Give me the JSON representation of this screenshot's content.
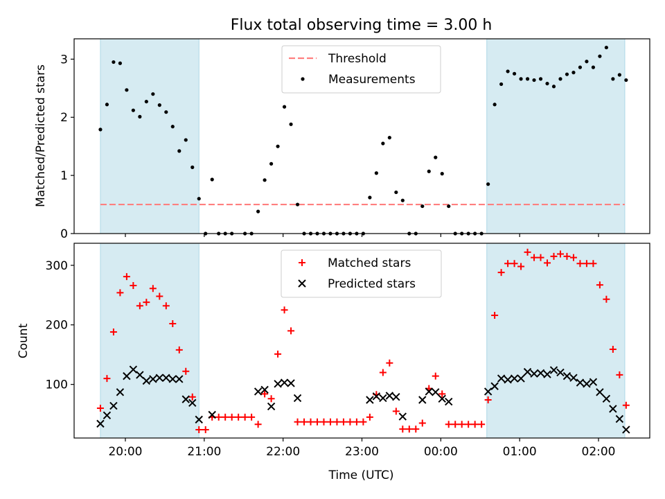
{
  "figure": {
    "title": "Flux total observing time = 3.00 h"
  },
  "chart_data": [
    {
      "type": "scatter",
      "panel": "top",
      "ylabel": "Matched/Predicted stars",
      "xlabel": "",
      "ylim": [
        0,
        3.35
      ],
      "yticks": [
        0,
        1,
        2,
        3
      ],
      "xlim_hours": [
        19.35,
        26.65
      ],
      "grid": false,
      "legend_placement": "top-center",
      "threshold": {
        "name": "Threshold",
        "value": 0.5,
        "color": "#ff7f7f"
      },
      "shaded_regions": [
        {
          "from": "19:41",
          "to": "20:56",
          "color": "#add8e6"
        },
        {
          "from": "00:35",
          "to": "02:20",
          "color": "#add8e6"
        }
      ],
      "series": [
        {
          "name": "Measurements",
          "color": "#000000",
          "points": [
            [
              "19:41",
              1.79
            ],
            [
              "19:46",
              2.22
            ],
            [
              "19:51",
              2.95
            ],
            [
              "19:56",
              2.93
            ],
            [
              "20:01",
              2.47
            ],
            [
              "20:06",
              2.12
            ],
            [
              "20:11",
              2.01
            ],
            [
              "20:16",
              2.27
            ],
            [
              "20:21",
              2.4
            ],
            [
              "20:26",
              2.21
            ],
            [
              "20:31",
              2.09
            ],
            [
              "20:36",
              1.84
            ],
            [
              "20:41",
              1.42
            ],
            [
              "20:46",
              1.61
            ],
            [
              "20:51",
              1.14
            ],
            [
              "20:56",
              0.6
            ],
            [
              "21:01",
              0.0
            ],
            [
              "21:06",
              0.93
            ],
            [
              "21:11",
              0.0
            ],
            [
              "21:16",
              0.0
            ],
            [
              "21:21",
              0.0
            ],
            [
              "21:31",
              0.0
            ],
            [
              "21:36",
              0.0
            ],
            [
              "21:41",
              0.38
            ],
            [
              "21:46",
              0.92
            ],
            [
              "21:51",
              1.2
            ],
            [
              "21:56",
              1.5
            ],
            [
              "22:01",
              2.18
            ],
            [
              "22:06",
              1.88
            ],
            [
              "22:11",
              0.5
            ],
            [
              "22:16",
              0.0
            ],
            [
              "22:21",
              0.0
            ],
            [
              "22:26",
              0.0
            ],
            [
              "22:31",
              0.0
            ],
            [
              "22:36",
              0.0
            ],
            [
              "22:41",
              0.0
            ],
            [
              "22:46",
              0.0
            ],
            [
              "22:51",
              0.0
            ],
            [
              "22:56",
              0.0
            ],
            [
              "23:01",
              0.0
            ],
            [
              "23:06",
              0.62
            ],
            [
              "23:11",
              1.04
            ],
            [
              "23:16",
              1.55
            ],
            [
              "23:21",
              1.65
            ],
            [
              "23:26",
              0.71
            ],
            [
              "23:31",
              0.57
            ],
            [
              "23:36",
              0.0
            ],
            [
              "23:41",
              0.0
            ],
            [
              "23:46",
              0.47
            ],
            [
              "23:51",
              1.07
            ],
            [
              "23:56",
              1.31
            ],
            [
              "00:01",
              1.03
            ],
            [
              "00:06",
              0.47
            ],
            [
              "00:11",
              0.0
            ],
            [
              "00:16",
              0.0
            ],
            [
              "00:21",
              0.0
            ],
            [
              "00:26",
              0.0
            ],
            [
              "00:31",
              0.0
            ],
            [
              "00:36",
              0.85
            ],
            [
              "00:41",
              2.22
            ],
            [
              "00:46",
              2.57
            ],
            [
              "00:51",
              2.79
            ],
            [
              "00:56",
              2.75
            ],
            [
              "01:01",
              2.66
            ],
            [
              "01:06",
              2.66
            ],
            [
              "01:11",
              2.64
            ],
            [
              "01:16",
              2.66
            ],
            [
              "01:21",
              2.58
            ],
            [
              "01:26",
              2.53
            ],
            [
              "01:31",
              2.66
            ],
            [
              "01:36",
              2.74
            ],
            [
              "01:41",
              2.77
            ],
            [
              "01:46",
              2.86
            ],
            [
              "01:51",
              2.96
            ],
            [
              "01:56",
              2.86
            ],
            [
              "02:01",
              3.05
            ],
            [
              "02:06",
              3.2
            ],
            [
              "02:11",
              2.66
            ],
            [
              "02:16",
              2.73
            ],
            [
              "02:21",
              2.64
            ]
          ]
        }
      ]
    },
    {
      "type": "scatter",
      "panel": "bottom",
      "xlabel": "Time (UTC)",
      "ylabel": "Count",
      "ylim": [
        10,
        337
      ],
      "yticks": [
        100,
        200,
        300
      ],
      "xlim_hours": [
        19.35,
        26.65
      ],
      "xticks": [
        "20:00",
        "21:00",
        "22:00",
        "23:00",
        "00:00",
        "01:00",
        "02:00"
      ],
      "grid": false,
      "legend_placement": "top-center",
      "shaded_regions": [
        {
          "from": "19:41",
          "to": "20:56",
          "color": "#add8e6"
        },
        {
          "from": "00:35",
          "to": "02:20",
          "color": "#add8e6"
        }
      ],
      "series": [
        {
          "name": "Matched stars",
          "marker": "plus",
          "color": "#ff0000",
          "points": [
            [
              "19:41",
              60
            ],
            [
              "19:46",
              110
            ],
            [
              "19:51",
              188
            ],
            [
              "19:56",
              254
            ],
            [
              "20:01",
              281
            ],
            [
              "20:06",
              266
            ],
            [
              "20:11",
              232
            ],
            [
              "20:16",
              238
            ],
            [
              "20:21",
              261
            ],
            [
              "20:26",
              248
            ],
            [
              "20:31",
              232
            ],
            [
              "20:36",
              202
            ],
            [
              "20:41",
              158
            ],
            [
              "20:46",
              122
            ],
            [
              "20:51",
              79
            ],
            [
              "20:56",
              24
            ],
            [
              "21:01",
              24
            ],
            [
              "21:06",
              45
            ],
            [
              "21:11",
              45
            ],
            [
              "21:16",
              45
            ],
            [
              "21:21",
              45
            ],
            [
              "21:26",
              45
            ],
            [
              "21:31",
              45
            ],
            [
              "21:36",
              45
            ],
            [
              "21:41",
              33
            ],
            [
              "21:46",
              84
            ],
            [
              "21:51",
              76
            ],
            [
              "21:56",
              151
            ],
            [
              "22:01",
              225
            ],
            [
              "22:06",
              190
            ],
            [
              "22:11",
              37
            ],
            [
              "22:16",
              37
            ],
            [
              "22:21",
              37
            ],
            [
              "22:26",
              37
            ],
            [
              "22:31",
              37
            ],
            [
              "22:36",
              37
            ],
            [
              "22:41",
              37
            ],
            [
              "22:46",
              37
            ],
            [
              "22:51",
              37
            ],
            [
              "22:56",
              37
            ],
            [
              "23:01",
              37
            ],
            [
              "23:06",
              45
            ],
            [
              "23:11",
              83
            ],
            [
              "23:16",
              120
            ],
            [
              "23:21",
              136
            ],
            [
              "23:26",
              55
            ],
            [
              "23:31",
              25
            ],
            [
              "23:36",
              25
            ],
            [
              "23:41",
              25
            ],
            [
              "23:46",
              35
            ],
            [
              "23:51",
              93
            ],
            [
              "23:56",
              114
            ],
            [
              "00:01",
              84
            ],
            [
              "00:06",
              33
            ],
            [
              "00:11",
              33
            ],
            [
              "00:16",
              33
            ],
            [
              "00:21",
              33
            ],
            [
              "00:26",
              33
            ],
            [
              "00:31",
              33
            ],
            [
              "00:36",
              74
            ],
            [
              "00:41",
              216
            ],
            [
              "00:46",
              288
            ],
            [
              "00:51",
              303
            ],
            [
              "00:56",
              303
            ],
            [
              "01:01",
              298
            ],
            [
              "01:06",
              322
            ],
            [
              "01:11",
              313
            ],
            [
              "01:16",
              313
            ],
            [
              "01:21",
              304
            ],
            [
              "01:26",
              315
            ],
            [
              "01:31",
              319
            ],
            [
              "01:36",
              315
            ],
            [
              "01:41",
              313
            ],
            [
              "01:46",
              303
            ],
            [
              "01:51",
              303
            ],
            [
              "01:56",
              303
            ],
            [
              "02:01",
              267
            ],
            [
              "02:06",
              243
            ],
            [
              "02:11",
              159
            ],
            [
              "02:16",
              116
            ],
            [
              "02:21",
              65
            ]
          ]
        },
        {
          "name": "Predicted stars",
          "marker": "x",
          "color": "#000000",
          "points": [
            [
              "19:41",
              34
            ],
            [
              "19:46",
              48
            ],
            [
              "19:51",
              64
            ],
            [
              "19:56",
              87
            ],
            [
              "20:01",
              114
            ],
            [
              "20:06",
              125
            ],
            [
              "20:11",
              116
            ],
            [
              "20:16",
              106
            ],
            [
              "20:21",
              109
            ],
            [
              "20:26",
              111
            ],
            [
              "20:31",
              111
            ],
            [
              "20:36",
              109
            ],
            [
              "20:41",
              109
            ],
            [
              "20:46",
              75
            ],
            [
              "20:51",
              69
            ],
            [
              "20:56",
              41
            ],
            [
              "21:06",
              49
            ],
            [
              "21:41",
              88
            ],
            [
              "21:46",
              91
            ],
            [
              "21:51",
              63
            ],
            [
              "21:56",
              101
            ],
            [
              "22:01",
              103
            ],
            [
              "22:06",
              102
            ],
            [
              "22:11",
              77
            ],
            [
              "23:06",
              74
            ],
            [
              "23:11",
              80
            ],
            [
              "23:16",
              77
            ],
            [
              "23:21",
              81
            ],
            [
              "23:26",
              79
            ],
            [
              "23:31",
              46
            ],
            [
              "23:46",
              74
            ],
            [
              "23:51",
              88
            ],
            [
              "23:56",
              87
            ],
            [
              "00:01",
              76
            ],
            [
              "00:06",
              71
            ],
            [
              "00:36",
              88
            ],
            [
              "00:41",
              97
            ],
            [
              "00:46",
              110
            ],
            [
              "00:51",
              108
            ],
            [
              "00:56",
              110
            ],
            [
              "01:01",
              110
            ],
            [
              "01:06",
              121
            ],
            [
              "01:11",
              118
            ],
            [
              "01:16",
              119
            ],
            [
              "01:21",
              117
            ],
            [
              "01:26",
              124
            ],
            [
              "01:31",
              120
            ],
            [
              "01:36",
              114
            ],
            [
              "01:41",
              111
            ],
            [
              "01:46",
              103
            ],
            [
              "01:51",
              101
            ],
            [
              "01:56",
              104
            ],
            [
              "02:01",
              87
            ],
            [
              "02:06",
              76
            ],
            [
              "02:11",
              59
            ],
            [
              "02:16",
              42
            ],
            [
              "02:21",
              24
            ]
          ]
        }
      ]
    }
  ]
}
